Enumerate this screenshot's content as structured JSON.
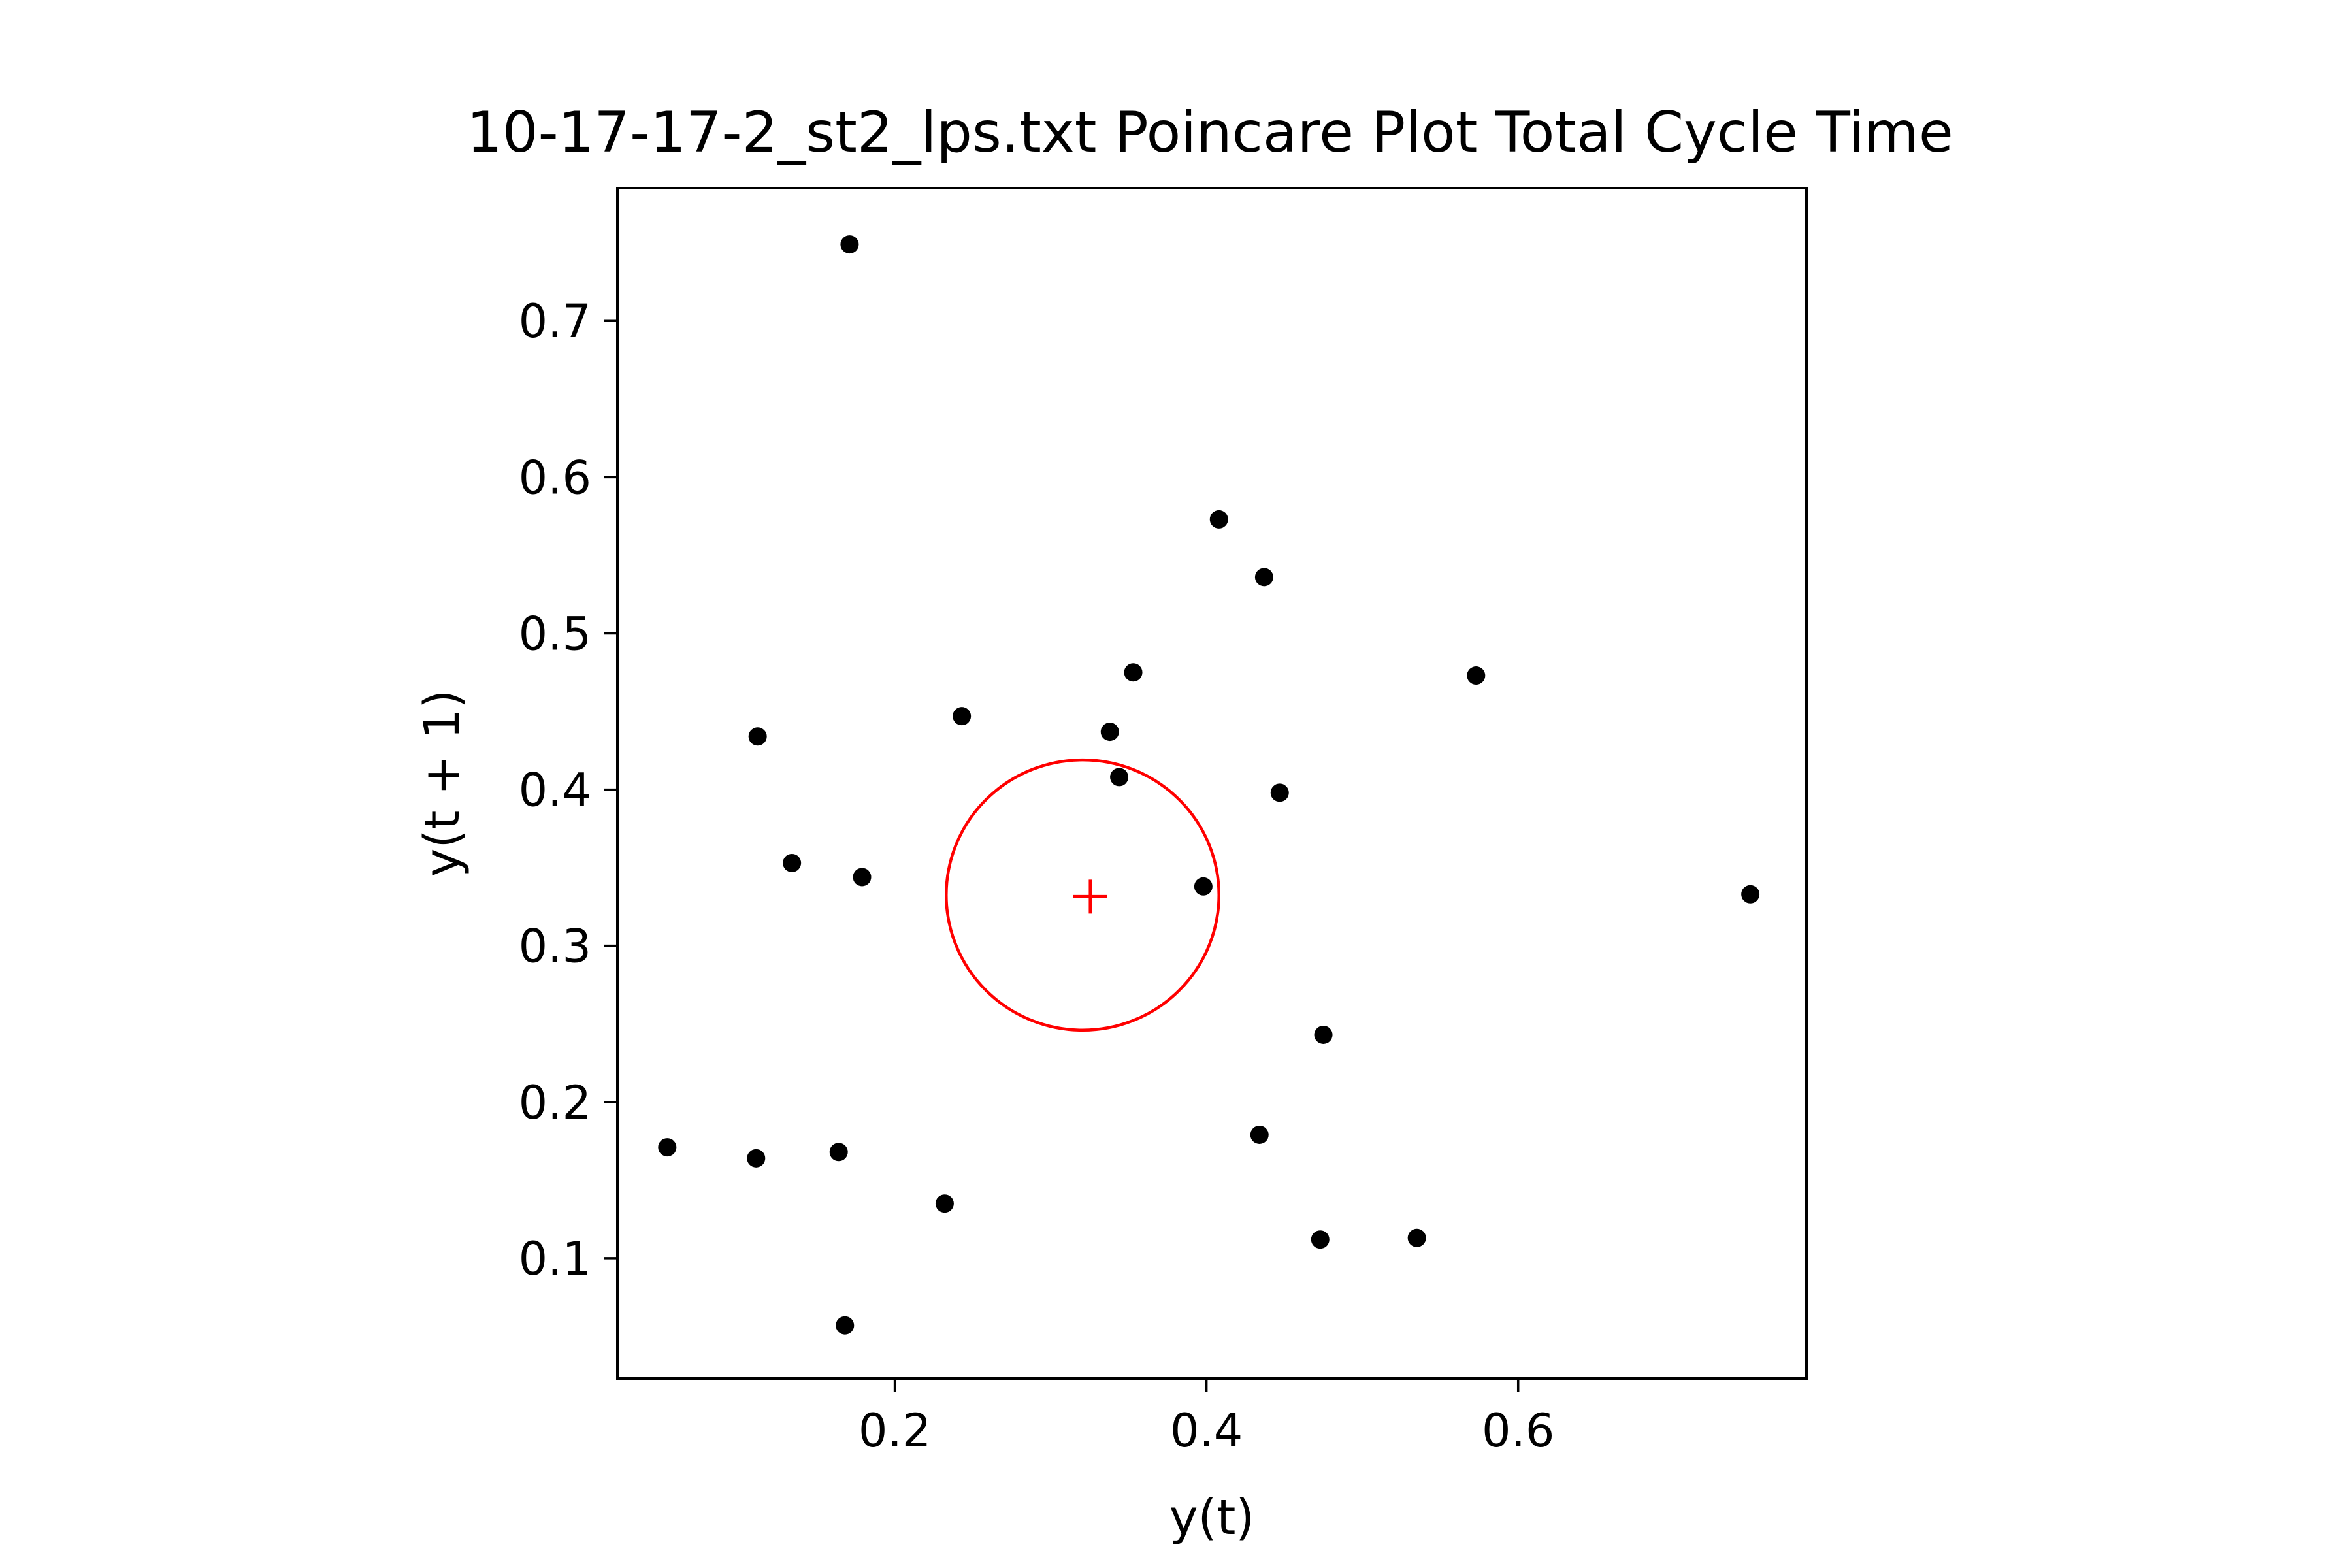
{
  "chart_data": {
    "type": "scatter",
    "title": "10-17-17-2_st2_lps.txt Poincare Plot Total Cycle Time",
    "xlabel": "y(t)",
    "ylabel": "y(t + 1)",
    "xlim": [
      0.022,
      0.785
    ],
    "ylim": [
      0.023,
      0.785
    ],
    "xticks": [
      0.2,
      0.4,
      0.6
    ],
    "xtick_labels": [
      "0.2",
      "0.4",
      "0.6"
    ],
    "yticks": [
      0.1,
      0.2,
      0.3,
      0.4,
      0.5,
      0.6,
      0.7
    ],
    "ytick_labels": [
      "0.1",
      "0.2",
      "0.3",
      "0.4",
      "0.5",
      "0.6",
      "0.7"
    ],
    "grid": false,
    "legend": "none",
    "point_color": "#000000",
    "points": [
      {
        "x": 0.171,
        "y": 0.749
      },
      {
        "x": 0.408,
        "y": 0.573
      },
      {
        "x": 0.437,
        "y": 0.536
      },
      {
        "x": 0.353,
        "y": 0.475
      },
      {
        "x": 0.573,
        "y": 0.473
      },
      {
        "x": 0.243,
        "y": 0.447
      },
      {
        "x": 0.112,
        "y": 0.434
      },
      {
        "x": 0.338,
        "y": 0.437
      },
      {
        "x": 0.344,
        "y": 0.408
      },
      {
        "x": 0.447,
        "y": 0.398
      },
      {
        "x": 0.134,
        "y": 0.353
      },
      {
        "x": 0.179,
        "y": 0.344
      },
      {
        "x": 0.398,
        "y": 0.338
      },
      {
        "x": 0.749,
        "y": 0.333
      },
      {
        "x": 0.475,
        "y": 0.243
      },
      {
        "x": 0.434,
        "y": 0.179
      },
      {
        "x": 0.054,
        "y": 0.171
      },
      {
        "x": 0.111,
        "y": 0.164
      },
      {
        "x": 0.164,
        "y": 0.168
      },
      {
        "x": 0.232,
        "y": 0.135
      },
      {
        "x": 0.473,
        "y": 0.112
      },
      {
        "x": 0.535,
        "y": 0.113
      },
      {
        "x": 0.168,
        "y": 0.057
      }
    ],
    "mean_marker": {
      "x": 0.3255,
      "y": 0.3315,
      "color": "#ff0000"
    },
    "ellipse": {
      "cx": 0.3205,
      "cy": 0.3325,
      "rx": 0.0875,
      "ry": 0.0865,
      "color": "#ff0000"
    }
  }
}
